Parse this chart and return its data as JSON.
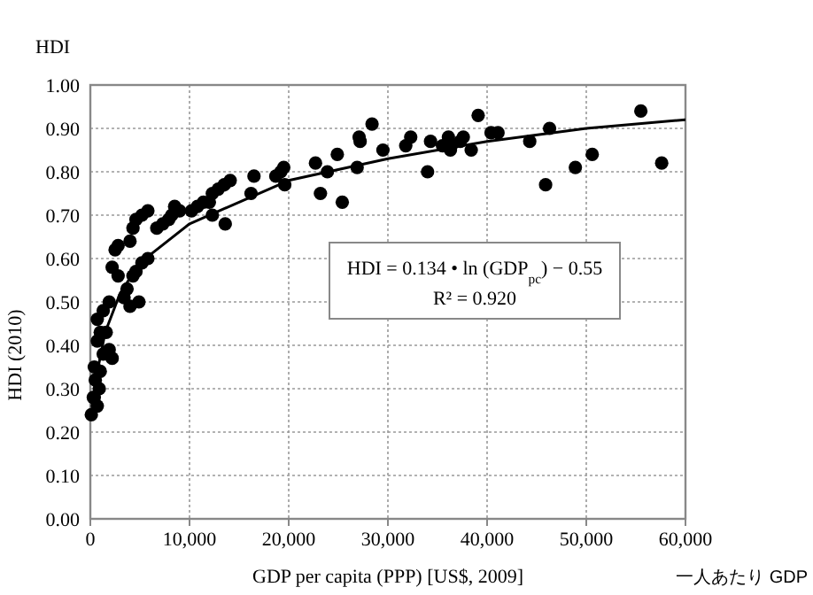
{
  "chart_data": {
    "type": "scatter",
    "title": "HDI",
    "xlabel": "GDP per capita (PPP) [US$, 2009]",
    "ylabel": "HDI (2010)",
    "annotations": [
      "HDI = 0.134 • ln (GDP$_{pc}$) − 0.55",
      "R² = 0.920",
      "一人あたり GDP"
    ],
    "xlim": [
      0,
      60000
    ],
    "ylim": [
      0,
      1
    ],
    "xticks": [
      0,
      {
        "value": 10000,
        "label": "10,000"
      },
      {
        "value": 20000,
        "label": "20,000"
      },
      {
        "value": 30000,
        "label": "30,000"
      },
      {
        "value": 40000,
        "label": "40,000"
      },
      {
        "value": 50000,
        "label": "50,000"
      },
      {
        "value": 60000,
        "label": "60,000"
      }
    ],
    "yticks": [
      {
        "value": 0,
        "label": "0.00"
      },
      {
        "value": 0.1,
        "label": "0.10"
      },
      {
        "value": 0.2,
        "label": "0.20"
      },
      {
        "value": 0.3,
        "label": "0.30"
      },
      {
        "value": 0.4,
        "label": "0.40"
      },
      {
        "value": 0.5,
        "label": "0.50"
      },
      {
        "value": 0.6,
        "label": "0.60"
      },
      {
        "value": 0.7,
        "label": "0.70"
      },
      {
        "value": 0.8,
        "label": "0.80"
      },
      {
        "value": 0.9,
        "label": "0.90"
      },
      {
        "value": 1,
        "label": "1.00"
      }
    ],
    "grid": true,
    "series": [
      {
        "color": "#000000",
        "marker": "circle",
        "x": [
          39100,
          55500,
          57600,
          45900,
          48900,
          50600,
          46300,
          44300,
          41100,
          40400,
          38400,
          37600,
          37300,
          36400,
          36300,
          36100,
          35500,
          34300,
          34000,
          32300,
          31800,
          29500,
          28400,
          27200,
          26900,
          27100,
          24900,
          23900,
          23200,
          25400,
          22700,
          19500,
          19200,
          19600,
          18700,
          16500,
          16200,
          14100,
          13500,
          12900,
          12300,
          12000,
          13600,
          12300,
          10800,
          10200,
          11400,
          8500,
          9000,
          8200,
          7900,
          7300,
          6700,
          5800,
          5200,
          4600,
          4300,
          4000,
          2800,
          2500,
          2200,
          2800,
          5800,
          5200,
          4600,
          4300,
          3700,
          3400,
          4900,
          4000,
          1900,
          1300,
          700,
          1000,
          1600,
          700,
          1900,
          1300,
          2200,
          400,
          1000,
          500,
          900,
          400,
          700,
          100,
          300
        ],
        "values": [
          0.93,
          0.94,
          0.82,
          0.77,
          0.81,
          0.84,
          0.9,
          0.87,
          0.89,
          0.89,
          0.85,
          0.88,
          0.87,
          0.86,
          0.85,
          0.88,
          0.86,
          0.87,
          0.8,
          0.88,
          0.86,
          0.85,
          0.91,
          0.87,
          0.81,
          0.88,
          0.84,
          0.8,
          0.75,
          0.73,
          0.82,
          0.81,
          0.8,
          0.77,
          0.79,
          0.79,
          0.75,
          0.78,
          0.77,
          0.76,
          0.75,
          0.73,
          0.68,
          0.7,
          0.72,
          0.71,
          0.73,
          0.72,
          0.71,
          0.7,
          0.69,
          0.68,
          0.67,
          0.71,
          0.7,
          0.69,
          0.67,
          0.64,
          0.63,
          0.62,
          0.58,
          0.56,
          0.6,
          0.59,
          0.57,
          0.56,
          0.53,
          0.51,
          0.5,
          0.49,
          0.5,
          0.48,
          0.46,
          0.43,
          0.43,
          0.41,
          0.39,
          0.38,
          0.37,
          0.35,
          0.34,
          0.32,
          0.3,
          0.28,
          0.26,
          0.24,
          0.28
        ]
      },
      {
        "type": "line",
        "color": "#000000",
        "marker": "none",
        "line_style": "solid",
        "x": [
          800,
          1500,
          3000,
          5000,
          10000,
          20000,
          30000,
          40000,
          50000,
          60000
        ],
        "values": [
          0.35,
          0.43,
          0.52,
          0.59,
          0.68,
          0.78,
          0.83,
          0.87,
          0.9,
          0.92
        ]
      }
    ]
  }
}
